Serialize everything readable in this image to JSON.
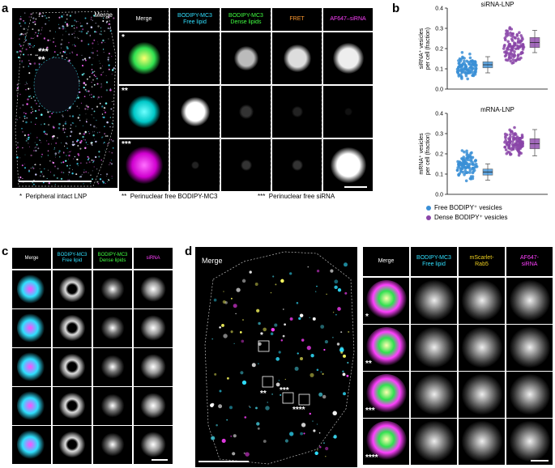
{
  "panels": {
    "a": {
      "label": "a",
      "overview_label": "Merge",
      "headers": [
        "Merge",
        "BODIPY-MC3\nFree lipid",
        "BODIPY-MC3\nDense lipids",
        "FRET",
        "AF647–siRNA"
      ],
      "header_colors": [
        "#ffffff",
        "#30e0ff",
        "#40ff40",
        "#ff9a30",
        "#ff40ff"
      ],
      "row_stars": [
        "*",
        "**",
        "***"
      ],
      "overview_stars": "***\n**",
      "overview_small_star": "*",
      "legend": [
        {
          "stars": "*",
          "text": "Peripheral intact LNP"
        },
        {
          "stars": "**",
          "text": "Perinuclear free BODIPY-MC3"
        },
        {
          "stars": "***",
          "text": "Perinuclear free siRNA"
        }
      ]
    },
    "b": {
      "label": "b",
      "legend": [
        {
          "text": "Free BODIPY⁺ vesicles",
          "color": "#3a8fd6"
        },
        {
          "text": "Dense BODIPY⁺ vesicles",
          "color": "#8a45a8"
        }
      ]
    },
    "c": {
      "label": "c",
      "headers": [
        "Merge",
        "BODIPY-MC3\nFree lipid",
        "BODIPY-MC3\nDense lipids",
        "siRNA"
      ],
      "header_colors": [
        "#ffffff",
        "#30e0ff",
        "#40ff40",
        "#ff40ff"
      ]
    },
    "d": {
      "label": "d",
      "overview_label": "Merge",
      "headers": [
        "Merge",
        "BODIPY-MC3\nFree lipid",
        "mScarlet-\nRab5",
        "AF647-\nsiRNA"
      ],
      "header_colors": [
        "#ffffff",
        "#30e0ff",
        "#f0d020",
        "#ff40ff"
      ],
      "row_stars": [
        "*",
        "**",
        "***",
        "****"
      ],
      "overview_stars": [
        "*",
        "**",
        "***",
        "****"
      ]
    }
  },
  "chart_data": [
    {
      "type": "scatter",
      "title": "siRNA-LNP",
      "ylabel": "siRNA⁺ vesicles\nper cell (fraction)",
      "ylim": [
        0,
        0.4
      ],
      "yticks": [
        0,
        0.1,
        0.2,
        0.3,
        0.4
      ],
      "series": [
        {
          "name": "Free BODIPY⁺ vesicles",
          "color": "#3a8fd6",
          "median": 0.12,
          "q1": 0.105,
          "q3": 0.135,
          "whisker_low": 0.08,
          "whisker_high": 0.16,
          "data_min": 0.02,
          "data_max": 0.19
        },
        {
          "name": "Dense BODIPY⁺ vesicles",
          "color": "#8a45a8",
          "median": 0.23,
          "q1": 0.205,
          "q3": 0.255,
          "whisker_low": 0.18,
          "whisker_high": 0.29,
          "data_min": 0.08,
          "data_max": 0.35
        }
      ]
    },
    {
      "type": "scatter",
      "title": "mRNA-LNP",
      "ylabel": "mRNA⁺ vesicles\nper cell (fraction)",
      "ylim": [
        0,
        0.4
      ],
      "yticks": [
        0,
        0.1,
        0.2,
        0.3,
        0.4
      ],
      "series": [
        {
          "name": "Free BODIPY⁺ vesicles",
          "color": "#3a8fd6",
          "median": 0.11,
          "q1": 0.095,
          "q3": 0.125,
          "whisker_low": 0.07,
          "whisker_high": 0.15,
          "data_min": 0.03,
          "data_max": 0.25
        },
        {
          "name": "Dense BODIPY⁺ vesicles",
          "color": "#8a45a8",
          "median": 0.25,
          "q1": 0.225,
          "q3": 0.275,
          "whisker_low": 0.19,
          "whisker_high": 0.32,
          "data_min": 0.15,
          "data_max": 0.36
        }
      ]
    }
  ]
}
